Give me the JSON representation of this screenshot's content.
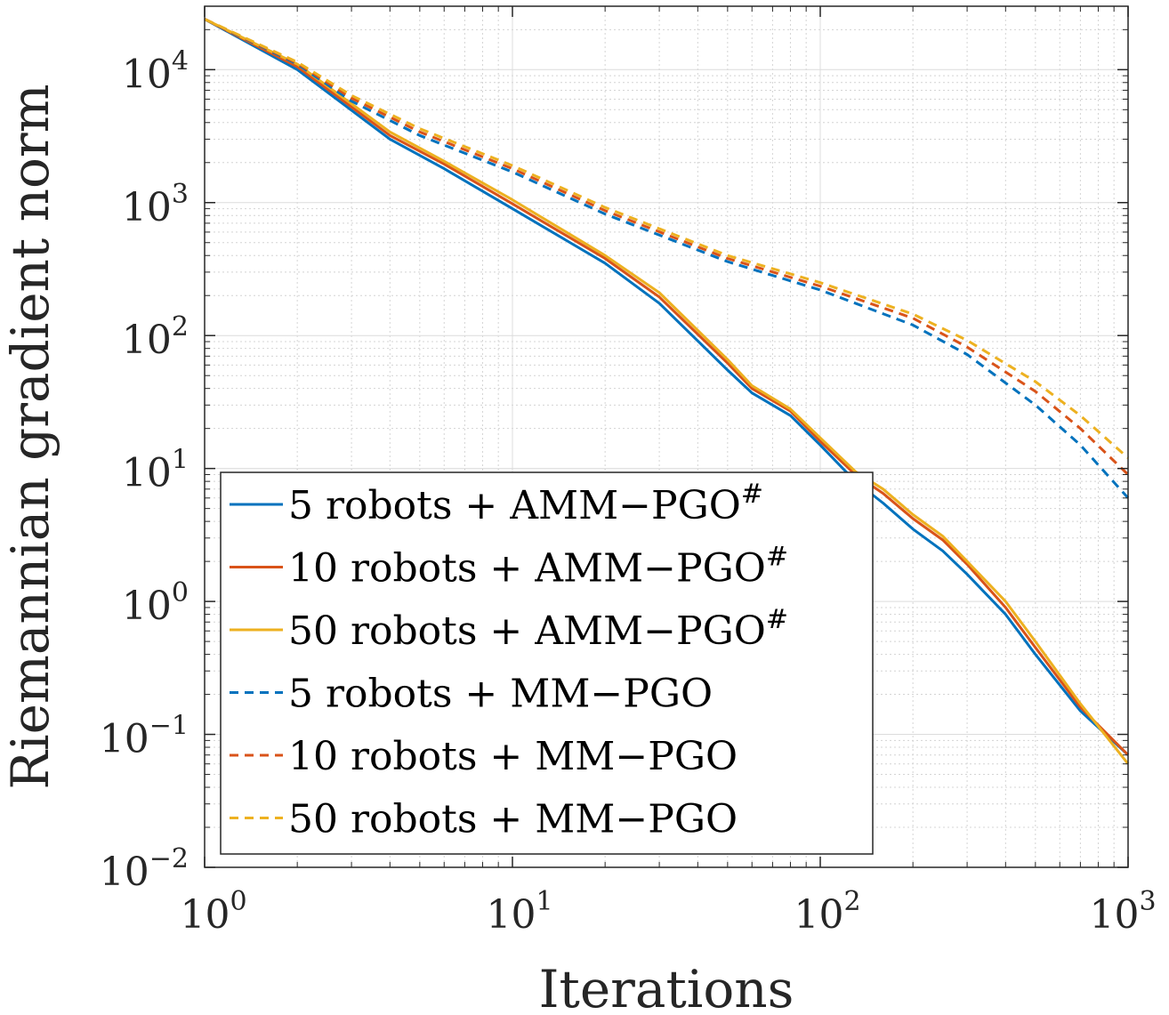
{
  "chart_data": {
    "type": "line",
    "xlabel": "Iterations",
    "ylabel": "Riemannian gradient norm",
    "x_scale": "log",
    "y_scale": "log",
    "xlim": [
      1,
      1000
    ],
    "ylim": [
      0.01,
      30000
    ],
    "grid": true,
    "minor_grid": true,
    "legend_position": "bottom-left",
    "x_ticks": [
      {
        "base": "10",
        "exp": "0"
      },
      {
        "base": "10",
        "exp": "1"
      },
      {
        "base": "10",
        "exp": "2"
      },
      {
        "base": "10",
        "exp": "3"
      }
    ],
    "y_ticks": [
      {
        "base": "10",
        "exp": "4"
      },
      {
        "base": "10",
        "exp": "3"
      },
      {
        "base": "10",
        "exp": "2"
      },
      {
        "base": "10",
        "exp": "1"
      },
      {
        "base": "10",
        "exp": "0"
      },
      {
        "base": "10",
        "exp": "−1"
      },
      {
        "base": "10",
        "exp": "−2"
      }
    ],
    "series": [
      {
        "name": "5 robots + AMM−PGO#",
        "label_main": "5 robots + AMM−PGO",
        "label_sup": "#",
        "color": "#0072BD",
        "dash": "solid",
        "x": [
          1,
          2,
          4,
          6,
          10,
          20,
          30,
          50,
          60,
          80,
          100,
          130,
          160,
          200,
          250,
          300,
          400,
          500,
          700,
          1000
        ],
        "y": [
          24000,
          10000,
          3000,
          1800,
          900,
          350,
          175,
          55,
          37,
          25,
          15,
          8,
          5.5,
          3.5,
          2.4,
          1.6,
          0.8,
          0.4,
          0.15,
          0.07
        ]
      },
      {
        "name": "10 robots + AMM−PGO#",
        "label_main": "10 robots + AMM−PGO",
        "label_sup": "#",
        "color": "#D95319",
        "dash": "solid",
        "x": [
          1,
          2,
          4,
          6,
          10,
          20,
          30,
          50,
          60,
          80,
          100,
          130,
          160,
          200,
          250,
          300,
          400,
          500,
          700,
          1000
        ],
        "y": [
          24000,
          10500,
          3200,
          1950,
          980,
          380,
          195,
          62,
          40,
          27,
          16,
          9,
          6.5,
          4.2,
          2.9,
          1.9,
          0.9,
          0.45,
          0.16,
          0.07
        ]
      },
      {
        "name": "50 robots + AMM−PGO#",
        "label_main": "50 robots + AMM−PGO",
        "label_sup": "#",
        "color": "#EDB120",
        "dash": "solid",
        "x": [
          1,
          2,
          4,
          6,
          10,
          20,
          30,
          50,
          60,
          80,
          100,
          130,
          160,
          200,
          250,
          300,
          400,
          500,
          700,
          1000
        ],
        "y": [
          24000,
          11000,
          3400,
          2050,
          1050,
          400,
          210,
          66,
          42,
          28,
          17,
          9.5,
          7,
          4.5,
          3.1,
          2.0,
          1.0,
          0.5,
          0.17,
          0.06
        ]
      },
      {
        "name": "5 robots + MM−PGO",
        "label_main": "5 robots + MM−PGO",
        "label_sup": "",
        "color": "#0072BD",
        "dash": "dashed",
        "x": [
          1,
          2,
          3,
          5,
          10,
          20,
          50,
          100,
          200,
          300,
          500,
          700,
          1000
        ],
        "y": [
          24000,
          11000,
          5800,
          3200,
          1700,
          820,
          360,
          220,
          120,
          72,
          30,
          15,
          6
        ]
      },
      {
        "name": "10 robots + MM−PGO",
        "label_main": "10 robots + MM−PGO",
        "label_sup": "",
        "color": "#D95319",
        "dash": "dashed",
        "x": [
          1,
          2,
          3,
          5,
          10,
          20,
          50,
          100,
          200,
          300,
          500,
          700,
          1000
        ],
        "y": [
          24000,
          11200,
          6100,
          3400,
          1800,
          870,
          380,
          235,
          135,
          82,
          38,
          20,
          9
        ]
      },
      {
        "name": "50 robots + MM−PGO",
        "label_main": "50 robots + MM−PGO",
        "label_sup": "",
        "color": "#EDB120",
        "dash": "dashed",
        "x": [
          1,
          2,
          3,
          5,
          10,
          20,
          50,
          100,
          200,
          300,
          500,
          700,
          1000
        ],
        "y": [
          24000,
          11400,
          6400,
          3600,
          1900,
          920,
          400,
          250,
          145,
          92,
          45,
          25,
          12
        ]
      }
    ]
  }
}
